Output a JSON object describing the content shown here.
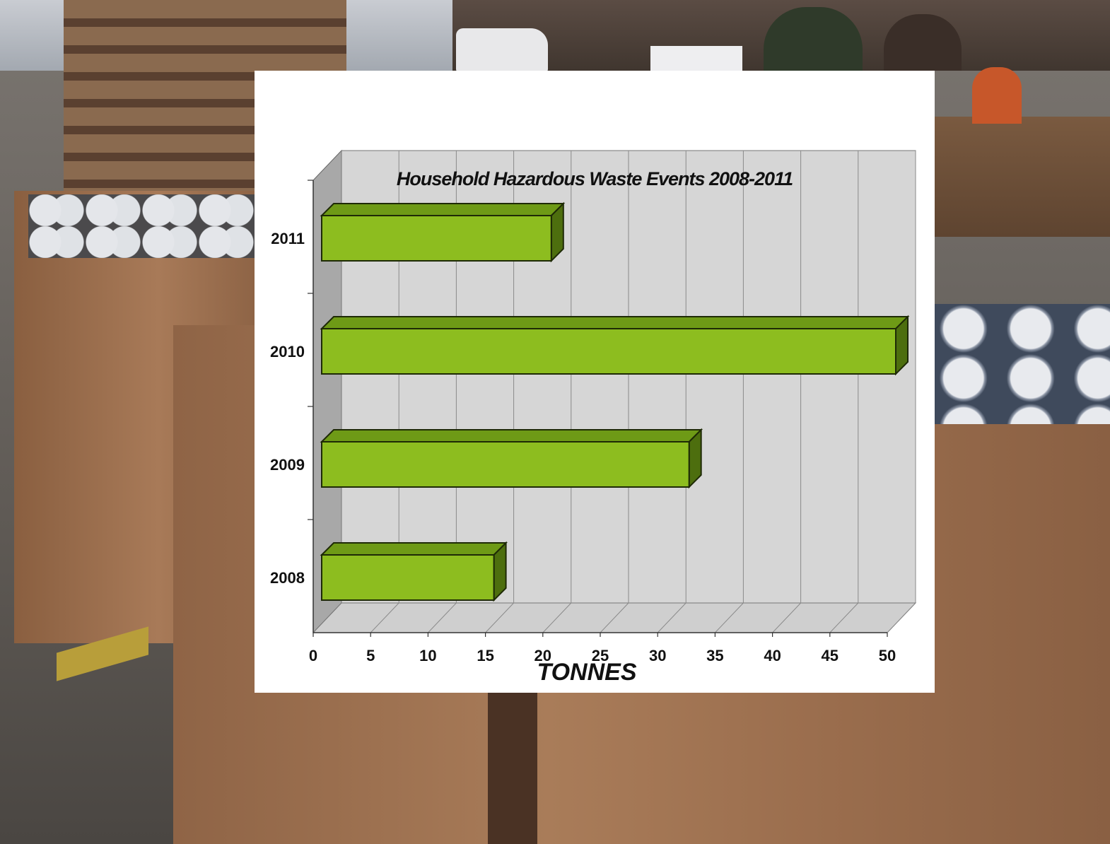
{
  "chart_data": {
    "type": "bar",
    "orientation": "horizontal",
    "title": "Household Hazardous Waste Events 2008-2011",
    "xlabel": "TONNES",
    "ylabel": "",
    "categories": [
      "2008",
      "2009",
      "2010",
      "2011"
    ],
    "values": [
      15,
      32,
      50,
      20
    ],
    "xlim": [
      0,
      50
    ],
    "xticks": [
      "0",
      "5",
      "10",
      "15",
      "20",
      "25",
      "30",
      "35",
      "40",
      "45",
      "50"
    ],
    "grid": true,
    "legend": "none",
    "style": "3d"
  },
  "colors": {
    "bar_front": "#8dbd1f",
    "bar_top": "#6e9a16",
    "bar_side": "#4d6e0e",
    "wall": "#d6d6d6",
    "floor": "#cfcfcf",
    "panel": "#ffffff"
  }
}
